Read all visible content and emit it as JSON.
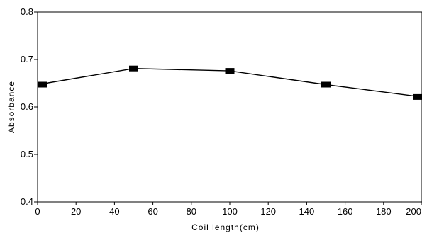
{
  "chart_data": {
    "type": "line",
    "title": "",
    "xlabel": "Coil length(cm)",
    "ylabel": "Absorbance",
    "xlim": [
      0,
      200
    ],
    "ylim": [
      0.4,
      0.8
    ],
    "xticks": [
      0,
      20,
      40,
      60,
      80,
      100,
      120,
      140,
      160,
      180,
      200
    ],
    "yticks": [
      0.4,
      0.5,
      0.6,
      0.7,
      0.8
    ],
    "grid": false,
    "legend": "none",
    "series": [
      {
        "x": [
          0,
          50,
          100,
          150,
          200
        ],
        "y": [
          0.647,
          0.681,
          0.676,
          0.647,
          0.621
        ]
      }
    ],
    "colors": {
      "line": "#000000",
      "marker": "#000000",
      "axis": "#000000"
    }
  }
}
